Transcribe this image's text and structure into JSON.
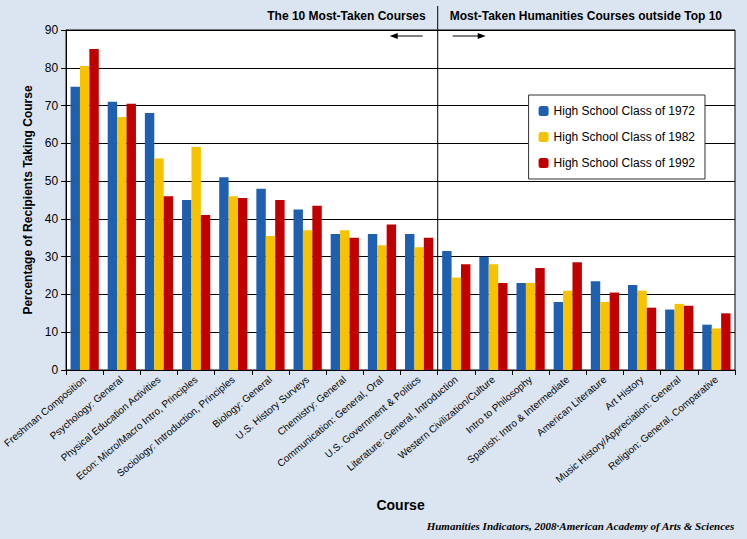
{
  "chart_data": {
    "type": "bar",
    "x_label": "Course",
    "y_label": "Percentage of Recipients Taking Course",
    "annotations": [
      "The 10 Most-Taken Courses",
      "Most-Taken Humanities Courses outside Top 10"
    ],
    "source": "Humanities Indicators, 2008·American Academy of Arts & Sciences",
    "categories": [
      "Freshman Composition",
      "Psychology: General",
      "Physical Education Activities",
      "Econ: Micro/Macro Intro, Principles",
      "Sociology: Introduction, Principles",
      "Biology: General",
      "U.S. History Surveys",
      "Chemistry: General",
      "Communication: General, Oral",
      "U.S. Government & Politics",
      "Literature: General, Introduction",
      "Western Civilization/Culture",
      "Intro to Philosophy",
      "Spanish: Intro & Intermediate",
      "American Literature",
      "Art History",
      "Music History/Appreciation: General",
      "Religion: General, Comparative"
    ],
    "series": [
      {
        "name": "High School Class of 1972",
        "color": "#1f5fb0",
        "values": [
          75,
          71,
          68,
          45,
          51,
          48,
          42.5,
          36,
          36,
          36,
          31.5,
          30,
          23,
          18,
          23.5,
          22.5,
          16,
          12
        ]
      },
      {
        "name": "High School Class of 1982",
        "color": "#f7c200",
        "values": [
          80.5,
          67,
          56,
          59,
          46,
          35.5,
          37,
          37,
          33,
          32.5,
          24.5,
          28,
          23,
          21,
          18,
          21,
          17.5,
          11
        ]
      },
      {
        "name": "High School Class of 1992",
        "color": "#c00000",
        "values": [
          85,
          70.5,
          46,
          41,
          45.5,
          45,
          43.5,
          35,
          38.5,
          35,
          28,
          23,
          27,
          28.5,
          20.5,
          16.5,
          17,
          15
        ]
      }
    ],
    "ylim": [
      0,
      90
    ],
    "yticks": [
      0,
      10,
      20,
      30,
      40,
      50,
      60,
      70,
      80,
      90
    ],
    "grid": true,
    "legend": "upper right"
  }
}
